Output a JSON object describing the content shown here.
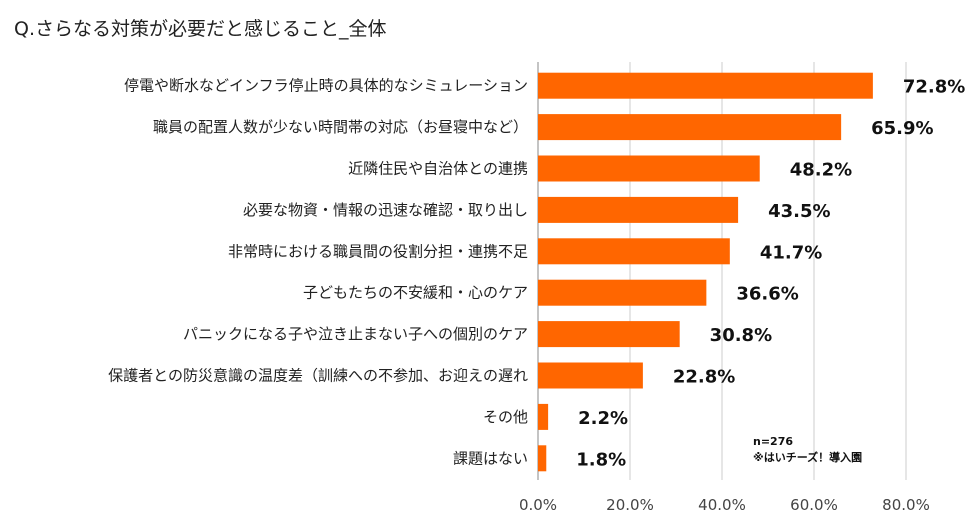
{
  "chart_data": {
    "type": "bar",
    "orientation": "horizontal",
    "title": "Q.さらなる対策が必要だと感じること_全体",
    "categories": [
      "停電や断水などインフラ停止時の具体的なシミュレーション",
      "職員の配置人数が少ない時間帯の対応（お昼寝中など）",
      "近隣住民や自治体との連携",
      "必要な物資・情報の迅速な確認・取り出し",
      "非常時における職員間の役割分担・連携不足",
      "子どもたちの不安緩和・心のケア",
      "パニックになる子や泣き止まない子への個別のケア",
      "保護者との防災意識の温度差（訓練への不参加、お迎えの遅れ",
      "その他",
      "課題はない"
    ],
    "values": [
      72.8,
      65.9,
      48.2,
      43.5,
      41.7,
      36.6,
      30.8,
      22.8,
      2.2,
      1.8
    ],
    "value_labels": [
      "72.8%",
      "65.9%",
      "48.2%",
      "43.5%",
      "41.7%",
      "36.6%",
      "30.8%",
      "22.8%",
      "2.2%",
      "1.8%"
    ],
    "xlim": [
      0,
      80
    ],
    "x_ticks": [
      "0.0%",
      "20.0%",
      "40.0%",
      "60.0%",
      "80.0%"
    ],
    "grid": true,
    "bar_color": "#ff6600"
  },
  "note": {
    "line1": "n=276",
    "line2": "※はいチーズ！導入園"
  }
}
